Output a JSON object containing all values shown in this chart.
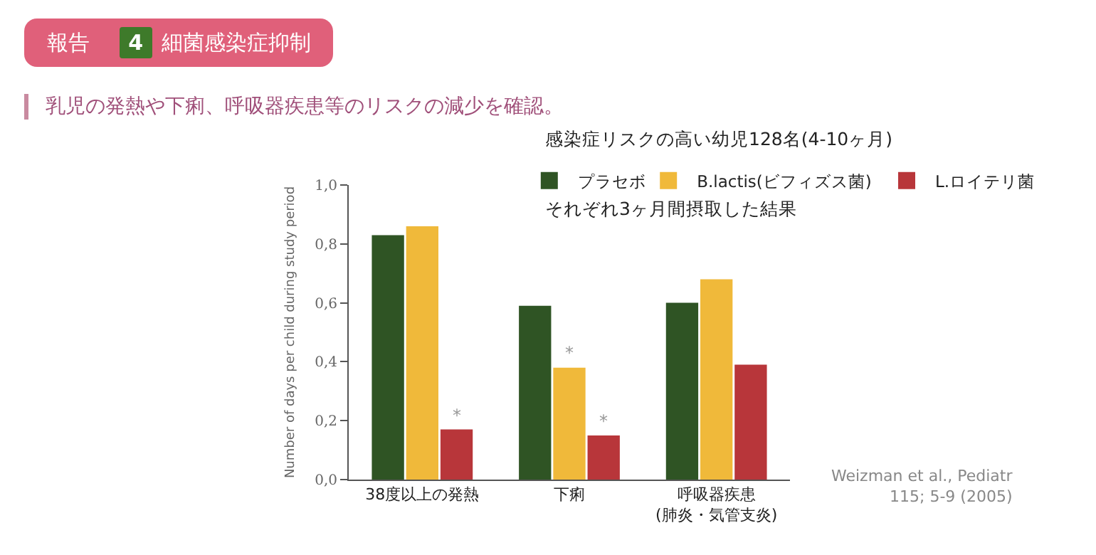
{
  "chart_data": {
    "type": "bar",
    "title": "報告 4 細菌感染症抑制",
    "subtitle": "乳児の発熱や下痢、呼吸器疾患等のリスクの減少を確認。",
    "ylabel": "Number of days per child during study period",
    "categories": [
      "38度以上の発熱",
      "下痢",
      "呼吸器疾患\n(肺炎・気管支炎)"
    ],
    "series": [
      {
        "name": "プラセボ",
        "color": "#2f5424",
        "values": [
          0.83,
          0.59,
          0.6
        ]
      },
      {
        "name": "B.lactis(ビフィズス菌)",
        "color": "#f0b93a",
        "values": [
          0.86,
          0.38,
          0.68
        ]
      },
      {
        "name": "L.ロイテリ菌",
        "color": "#b8363a",
        "values": [
          0.17,
          0.15,
          0.39
        ]
      }
    ],
    "ylim": [
      0,
      1
    ],
    "yticks": [
      {
        "value": 0,
        "label": "0,0"
      },
      {
        "value": 0.2,
        "label": "0,2"
      },
      {
        "value": 0.4,
        "label": "0,4"
      },
      {
        "value": 0.6,
        "label": "0,6"
      },
      {
        "value": 0.8,
        "label": "0,8"
      },
      {
        "value": 1,
        "label": "1,0"
      }
    ],
    "grid": false,
    "legend": "top",
    "annotations": [
      "感染症リスクの高い幼児128名(4-10ヶ月)",
      "それぞれ3ヶ月間摂取した結果",
      "Weizman et al., Pediatr\n115; 5-9 (2005)",
      "*",
      "*",
      "*"
    ]
  }
}
